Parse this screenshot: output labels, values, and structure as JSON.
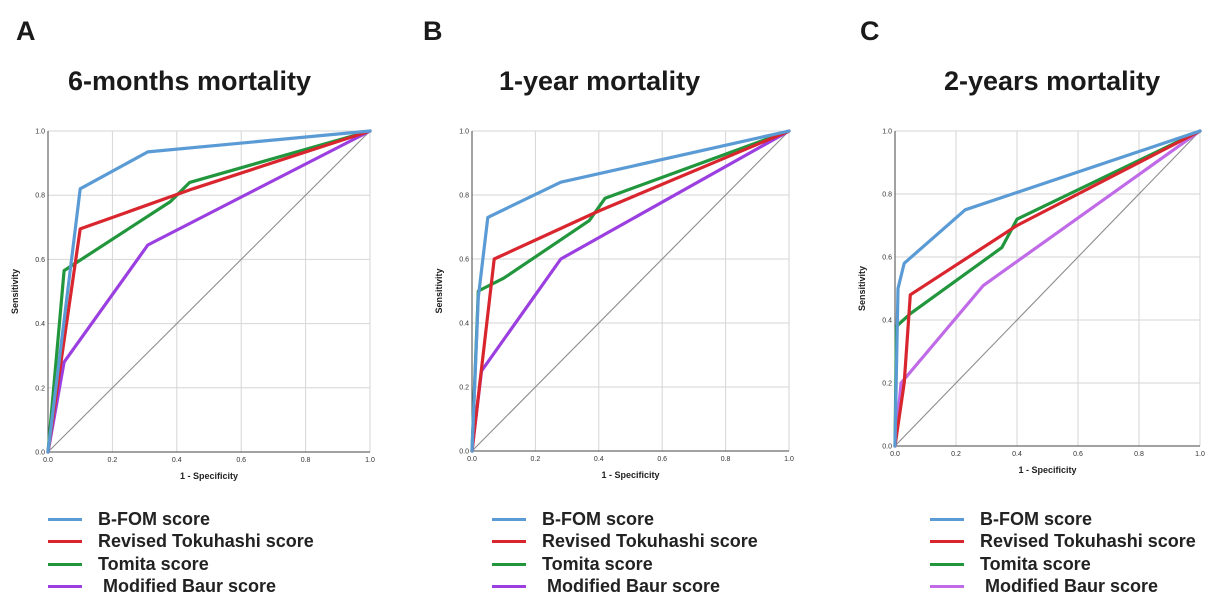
{
  "chart_data": [
    {
      "type": "line",
      "panel_label": "A",
      "title": "6-months mortality",
      "xlabel": "1 - Specificity",
      "ylabel": "Sensitivity",
      "xlim": [
        0,
        1
      ],
      "ylim": [
        0,
        1
      ],
      "xticks": [
        "0.0",
        "0.2",
        "0.4",
        "0.6",
        "0.8",
        "1.0"
      ],
      "yticks": [
        "0.0",
        "0.2",
        "0.4",
        "0.6",
        "0.8",
        "1.0"
      ],
      "grid": true,
      "legend_position": "bottom",
      "reference_line": true,
      "series": [
        {
          "name": "B-FOM score",
          "color": "#5b9bd5",
          "x": [
            0,
            0.1,
            0.31,
            1
          ],
          "y": [
            0,
            0.82,
            0.935,
            1
          ]
        },
        {
          "name": "Revised Tokuhashi score",
          "color": "#d9262e",
          "x": [
            0,
            0.1,
            0.45,
            1
          ],
          "y": [
            0,
            0.695,
            0.82,
            1
          ]
        },
        {
          "name": "Tomita score",
          "color": "#22963c",
          "x": [
            0,
            0.05,
            0.38,
            0.44,
            1
          ],
          "y": [
            0,
            0.565,
            0.78,
            0.84,
            1
          ]
        },
        {
          "name": "Modified Baur score",
          "color": "#9b3fe0",
          "x": [
            0,
            0.05,
            0.31,
            1
          ],
          "y": [
            0,
            0.28,
            0.645,
            1
          ]
        }
      ]
    },
    {
      "type": "line",
      "panel_label": "B",
      "title": "1-year mortality",
      "xlabel": "1 - Specificity",
      "ylabel": "Sensitivity",
      "xlim": [
        0,
        1
      ],
      "ylim": [
        0,
        1
      ],
      "xticks": [
        "0.0",
        "0.2",
        "0.4",
        "0.6",
        "0.8",
        "1.0"
      ],
      "yticks": [
        "0.0",
        "0.2",
        "0.4",
        "0.6",
        "0.8",
        "1.0"
      ],
      "grid": true,
      "legend_position": "bottom",
      "reference_line": true,
      "series": [
        {
          "name": "B-FOM score",
          "color": "#5b9bd5",
          "x": [
            0,
            0.02,
            0.05,
            0.28,
            1
          ],
          "y": [
            0,
            0.48,
            0.73,
            0.84,
            1
          ]
        },
        {
          "name": "Revised Tokuhashi score",
          "color": "#d9262e",
          "x": [
            0,
            0.07,
            0.4,
            1
          ],
          "y": [
            0,
            0.6,
            0.75,
            1
          ]
        },
        {
          "name": "Tomita score",
          "color": "#22963c",
          "x": [
            0,
            0.02,
            0.1,
            0.37,
            0.42,
            1
          ],
          "y": [
            0,
            0.5,
            0.54,
            0.72,
            0.79,
            1
          ]
        },
        {
          "name": "Modified Baur score",
          "color": "#9b3fe0",
          "x": [
            0,
            0.03,
            0.28,
            1
          ],
          "y": [
            0,
            0.25,
            0.6,
            1
          ]
        }
      ]
    },
    {
      "type": "line",
      "panel_label": "C",
      "title": "2-years mortality",
      "xlabel": "1 - Specificity",
      "ylabel": "Sensitivity",
      "xlim": [
        0,
        1
      ],
      "ylim": [
        0,
        1
      ],
      "xticks": [
        "0.0",
        "0.2",
        "0.4",
        "0.6",
        "0.8",
        "1.0"
      ],
      "yticks": [
        "0.0",
        "0.2",
        "0.4",
        "0.6",
        "0.8",
        "1.0"
      ],
      "grid": true,
      "legend_position": "bottom",
      "reference_line": true,
      "series": [
        {
          "name": "B-FOM score",
          "color": "#5b9bd5",
          "x": [
            0,
            0.01,
            0.03,
            0.23,
            1
          ],
          "y": [
            0,
            0.5,
            0.58,
            0.75,
            1
          ]
        },
        {
          "name": "Revised Tokuhashi score",
          "color": "#d9262e",
          "x": [
            0,
            0.03,
            0.05,
            0.4,
            1
          ],
          "y": [
            0,
            0.2,
            0.48,
            0.7,
            1
          ]
        },
        {
          "name": "Tomita score",
          "color": "#22963c",
          "x": [
            0,
            0.005,
            0.05,
            0.35,
            0.4,
            1
          ],
          "y": [
            0,
            0.38,
            0.42,
            0.63,
            0.72,
            1
          ]
        },
        {
          "name": "Modified Baur score",
          "color": "#c06ae8",
          "x": [
            0,
            0.02,
            0.29,
            1
          ],
          "y": [
            0,
            0.2,
            0.51,
            1
          ]
        }
      ]
    }
  ]
}
